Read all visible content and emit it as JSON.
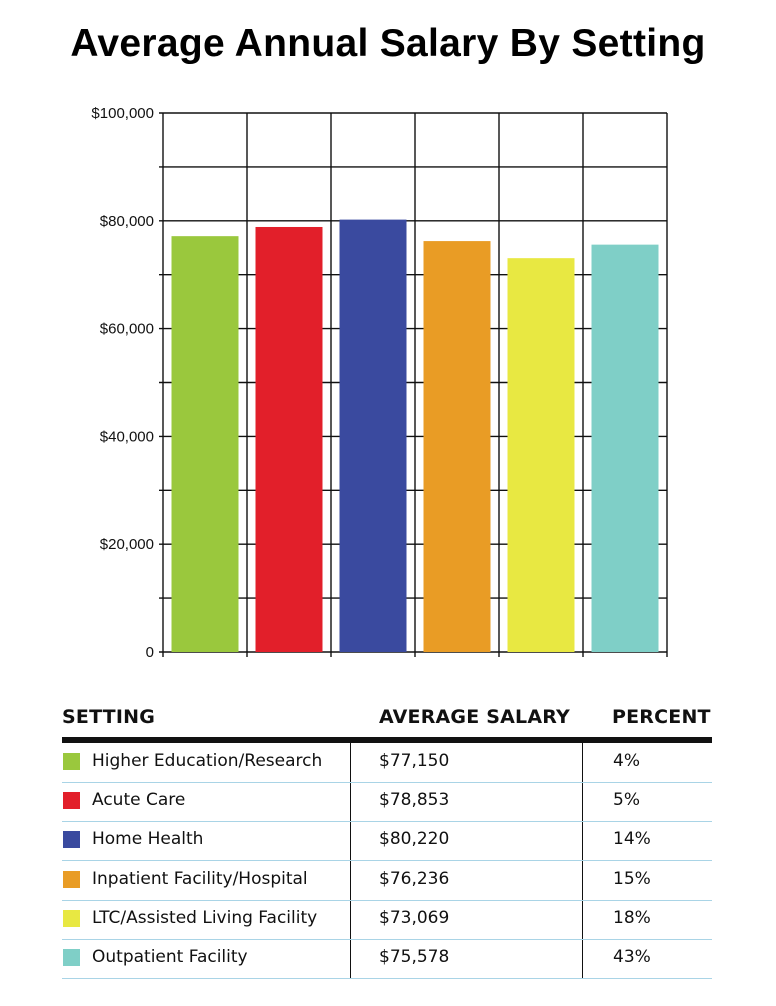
{
  "title": "Average Annual Salary By Setting",
  "chart_data": {
    "type": "bar",
    "title": "Average Annual Salary By Setting",
    "categories": [
      "Higher Education/Research",
      "Acute Care",
      "Home Health",
      "Inpatient Facility/Hospital",
      "LTC/Assisted Living Facility",
      "Outpatient Facility"
    ],
    "values": [
      77150,
      78853,
      80220,
      76236,
      73069,
      75578
    ],
    "colors": [
      "#9ac83d",
      "#e21f2a",
      "#3a4a9f",
      "#e99c25",
      "#e8e842",
      "#7fcfc7"
    ],
    "ylim": [
      0,
      100000
    ],
    "y_ticks": [
      0,
      20000,
      40000,
      60000,
      80000,
      100000
    ],
    "y_tick_labels": [
      "0",
      "$20,000",
      "$40,000",
      "$60,000",
      "$80,000",
      "$100,000"
    ],
    "grid": true,
    "xlabel": "",
    "ylabel": ""
  },
  "table": {
    "headers": {
      "setting": "SETTING",
      "salary": "AVERAGE SALARY",
      "percent": "PERCENT"
    },
    "rows": [
      {
        "setting": "Higher Education/Research",
        "salary": "$77,150",
        "percent": "4%",
        "color": "#9ac83d"
      },
      {
        "setting": "Acute Care",
        "salary": "$78,853",
        "percent": "5%",
        "color": "#e21f2a"
      },
      {
        "setting": "Home Health",
        "salary": "$80,220",
        "percent": "14%",
        "color": "#3a4a9f"
      },
      {
        "setting": "Inpatient Facility/Hospital",
        "salary": "$76,236",
        "percent": "15%",
        "color": "#e99c25"
      },
      {
        "setting": "LTC/Assisted Living Facility",
        "salary": "$73,069",
        "percent": "18%",
        "color": "#e8e842"
      },
      {
        "setting": "Outpatient Facility",
        "salary": "$75,578",
        "percent": "43%",
        "color": "#7fcfc7"
      }
    ]
  }
}
